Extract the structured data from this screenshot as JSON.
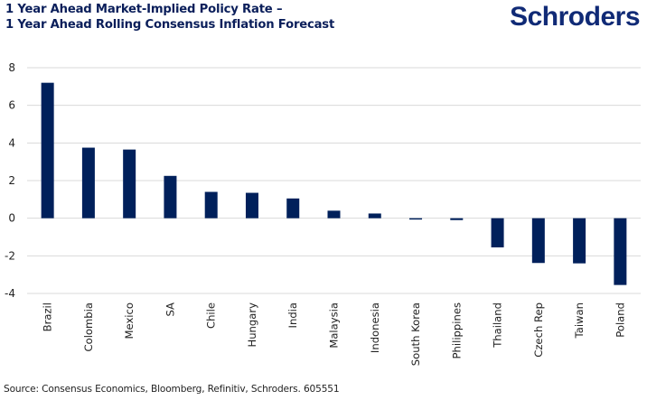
{
  "header": {
    "title_line1": "1 Year Ahead Market-Implied Policy Rate –",
    "title_line2": "1 Year Ahead Rolling Consensus Inflation Forecast",
    "logo": "Schroders"
  },
  "footer": {
    "source": "Source: Consensus Economics, Bloomberg, Refinitiv, Schroders. 605551"
  },
  "colors": {
    "bar": "#00205b",
    "grid": "#d9d9d9",
    "title": "#0a1e5a",
    "logo": "#102a76"
  },
  "chart_data": {
    "type": "bar",
    "title": "1 Year Ahead Market-Implied Policy Rate – 1 Year Ahead Rolling Consensus Inflation Forecast",
    "xlabel": "",
    "ylabel": "",
    "categories": [
      "Brazil",
      "Colombia",
      "Mexico",
      "SA",
      "Chile",
      "Hungary",
      "India",
      "Malaysia",
      "Indonesia",
      "South Korea",
      "Philippines",
      "Thailand",
      "Czech Rep",
      "Taiwan",
      "Poland"
    ],
    "values": [
      7.2,
      3.75,
      3.65,
      2.25,
      1.4,
      1.35,
      1.05,
      0.4,
      0.25,
      -0.07,
      -0.1,
      -1.55,
      -2.38,
      -2.4,
      -3.55
    ],
    "ylim": [
      -4,
      8
    ],
    "yticks": [
      8,
      6,
      4,
      2,
      0,
      -2,
      -4
    ],
    "ytick_labels": [
      "8",
      "6",
      "4",
      "2",
      "0",
      "-2",
      "-4"
    ],
    "grid": true,
    "legend": "none"
  }
}
